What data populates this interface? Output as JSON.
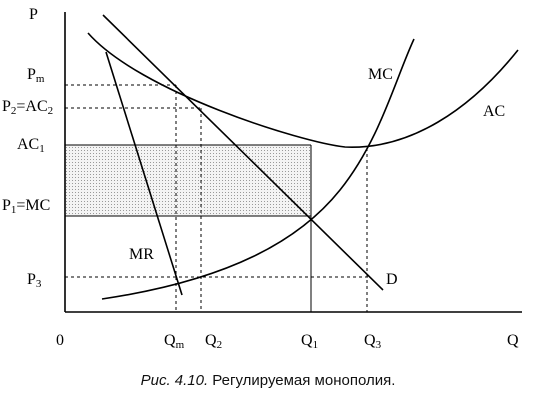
{
  "figure": {
    "axes": {
      "y_label": "P",
      "x_label": "Q",
      "origin": "0"
    },
    "price_labels": [
      {
        "id": "pm",
        "base": "P",
        "sub": "m"
      },
      {
        "id": "p2",
        "base": "P",
        "sub": "2",
        "rest": "=AC",
        "sub2": "2"
      },
      {
        "id": "ac1",
        "base": "AC",
        "sub": "1"
      },
      {
        "id": "p1",
        "base": "P",
        "sub": "1",
        "rest": "=MC"
      },
      {
        "id": "p3",
        "base": "P",
        "sub": "3"
      }
    ],
    "quantity_labels": [
      {
        "id": "qm",
        "base": "Q",
        "sub": "m"
      },
      {
        "id": "q2",
        "base": "Q",
        "sub": "2"
      },
      {
        "id": "q1",
        "base": "Q",
        "sub": "1"
      },
      {
        "id": "q3",
        "base": "Q",
        "sub": "3"
      }
    ],
    "curves": {
      "mc": "MC",
      "ac": "AC",
      "mr": "MR",
      "d": "D"
    }
  },
  "caption": {
    "prefix": "Рис. 4.10.",
    "text": " Регулируемая монополия."
  }
}
